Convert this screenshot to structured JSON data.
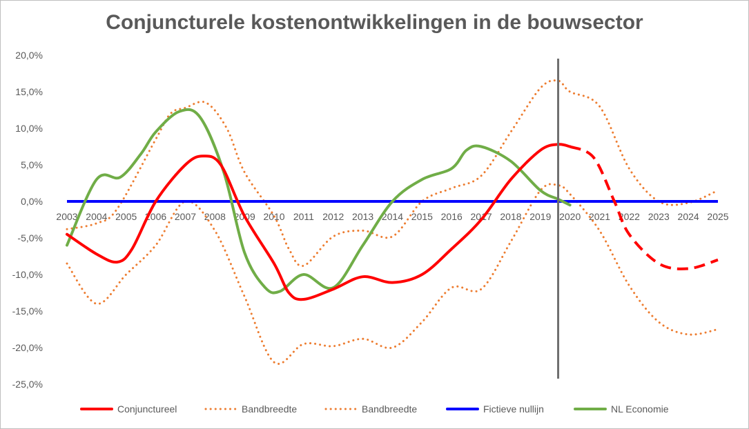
{
  "chart_data": {
    "type": "line",
    "title": "Conjuncturele kostenontwikkelingen in de bouwsector",
    "x_categories": [
      "2003",
      "2004",
      "2005",
      "2006",
      "2007",
      "2008",
      "2009",
      "2010",
      "2011",
      "2012",
      "2013",
      "2014",
      "2015",
      "2016",
      "2017",
      "2018",
      "2019",
      "2020",
      "2021",
      "2022",
      "2023",
      "2024",
      "2025"
    ],
    "y_ticks": [
      "20,0%",
      "15,0%",
      "10,0%",
      "5,0%",
      "0,0%",
      "-5,0%",
      "-10,0%",
      "-15,0%",
      "-20,0%",
      "-25,0%"
    ],
    "ylim": [
      -25,
      20
    ],
    "vertical_marker_x": 2019.6,
    "series": [
      {
        "name": "Conjunctureel",
        "color": "#ff0000",
        "style": "solid",
        "points": [
          [
            2003,
            -4.5
          ],
          [
            2004,
            -7.2
          ],
          [
            2004.7,
            -8.3
          ],
          [
            2005.2,
            -6.5
          ],
          [
            2006,
            0
          ],
          [
            2007,
            5.0
          ],
          [
            2007.6,
            6.2
          ],
          [
            2008.2,
            5.0
          ],
          [
            2009,
            -2.0
          ],
          [
            2010,
            -8.5
          ],
          [
            2010.5,
            -12.5
          ],
          [
            2011,
            -13.4
          ],
          [
            2012,
            -12.0
          ],
          [
            2013,
            -10.3
          ],
          [
            2014,
            -11.1
          ],
          [
            2015,
            -10.0
          ],
          [
            2016,
            -6.5
          ],
          [
            2017,
            -2.5
          ],
          [
            2018,
            3.0
          ],
          [
            2019,
            7.0
          ],
          [
            2019.6,
            7.8
          ],
          [
            2020,
            7.5
          ]
        ],
        "dashed_points": [
          [
            2020,
            7.5
          ],
          [
            2020.8,
            6.0
          ],
          [
            2021.5,
            0
          ],
          [
            2022,
            -4.5
          ],
          [
            2023,
            -8.5
          ],
          [
            2024,
            -9.2
          ],
          [
            2025,
            -8.0
          ]
        ]
      },
      {
        "name": "Bandbreedte",
        "color": "#ed7d31",
        "style": "dotted",
        "points": [
          [
            2003,
            -3.8
          ],
          [
            2004,
            -3.0
          ],
          [
            2004.7,
            -1.0
          ],
          [
            2006,
            8.5
          ],
          [
            2006.5,
            12.0
          ],
          [
            2007,
            12.8
          ],
          [
            2007.7,
            13.5
          ],
          [
            2008.4,
            10.0
          ],
          [
            2009,
            4.0
          ],
          [
            2010,
            -2.0
          ],
          [
            2010.5,
            -6.5
          ],
          [
            2011,
            -8.8
          ],
          [
            2012,
            -4.8
          ],
          [
            2013,
            -4.0
          ],
          [
            2014,
            -4.8
          ],
          [
            2015,
            0
          ],
          [
            2016,
            1.8
          ],
          [
            2017,
            3.5
          ],
          [
            2018,
            9.5
          ],
          [
            2019,
            15.5
          ],
          [
            2019.6,
            16.5
          ],
          [
            2020,
            15.0
          ],
          [
            2021,
            13.0
          ],
          [
            2022,
            4.5
          ],
          [
            2023,
            0
          ],
          [
            2024,
            -0.2
          ],
          [
            2025,
            1.5
          ]
        ]
      },
      {
        "name": "Bandbreedte",
        "color": "#ed7d31",
        "style": "dotted",
        "points": [
          [
            2003,
            -8.5
          ],
          [
            2004,
            -14.0
          ],
          [
            2005,
            -10.0
          ],
          [
            2006,
            -6.0
          ],
          [
            2007,
            0
          ],
          [
            2008,
            -4.0
          ],
          [
            2009,
            -13.0
          ],
          [
            2010,
            -22.0
          ],
          [
            2011,
            -19.5
          ],
          [
            2012,
            -19.8
          ],
          [
            2013,
            -18.8
          ],
          [
            2014,
            -20.0
          ],
          [
            2015,
            -16.5
          ],
          [
            2016,
            -11.8
          ],
          [
            2017,
            -12.0
          ],
          [
            2018,
            -5.5
          ],
          [
            2019,
            1.5
          ],
          [
            2019.6,
            2.2
          ],
          [
            2020,
            1.0
          ],
          [
            2021,
            -4.0
          ],
          [
            2022,
            -11.5
          ],
          [
            2023,
            -16.5
          ],
          [
            2024,
            -18.2
          ],
          [
            2025,
            -17.5
          ]
        ]
      },
      {
        "name": "Fictieve nullijn",
        "color": "#0000ff",
        "style": "solid",
        "points": [
          [
            2003,
            0
          ],
          [
            2025,
            0
          ]
        ]
      },
      {
        "name": "NL Economie",
        "color": "#70ad47",
        "style": "solid",
        "points": [
          [
            2003,
            -6.0
          ],
          [
            2004,
            3.0
          ],
          [
            2004.8,
            3.3
          ],
          [
            2005.5,
            6.5
          ],
          [
            2006,
            9.5
          ],
          [
            2006.8,
            12.3
          ],
          [
            2007.5,
            11.5
          ],
          [
            2008.3,
            4.0
          ],
          [
            2009,
            -7.0
          ],
          [
            2009.7,
            -11.8
          ],
          [
            2010.2,
            -12.3
          ],
          [
            2011,
            -10.0
          ],
          [
            2012,
            -11.8
          ],
          [
            2013,
            -6.0
          ],
          [
            2014,
            0
          ],
          [
            2015,
            3.0
          ],
          [
            2016,
            4.5
          ],
          [
            2016.5,
            7.0
          ],
          [
            2017,
            7.5
          ],
          [
            2018,
            5.5
          ],
          [
            2019,
            1.5
          ],
          [
            2019.6,
            0.3
          ],
          [
            2020,
            -0.5
          ]
        ]
      }
    ],
    "legend_position": "bottom"
  }
}
